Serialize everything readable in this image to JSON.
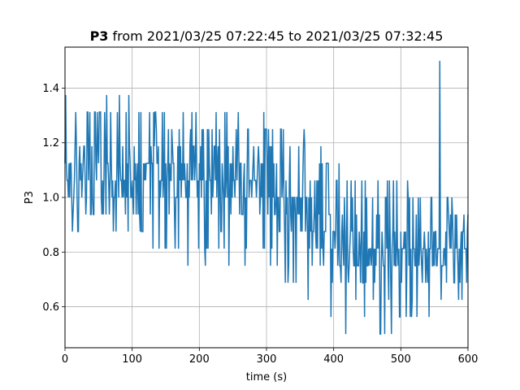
{
  "chart_data": {
    "type": "line",
    "title_bold": "P3",
    "title_rest": " from 2021/03/25 07:22:45 to 2021/03/25 07:32:45",
    "xlabel": "time (s)",
    "ylabel": "P3",
    "xlim": [
      0,
      600
    ],
    "ylim": [
      0.45,
      1.55
    ],
    "xticks": [
      0,
      100,
      200,
      300,
      400,
      500,
      600
    ],
    "yticks": [
      0.6,
      0.8,
      1.0,
      1.2,
      1.4
    ],
    "ytick_labels": [
      "0.6",
      "0.8",
      "1.0",
      "1.2",
      "1.4"
    ],
    "grid": true,
    "series": [
      {
        "color": "#1f77b4",
        "x_start": 0,
        "x_end": 600,
        "points": 601,
        "quantization_step": 0.0625,
        "envelope": [
          {
            "x": 0,
            "min": 0.875,
            "max": 1.375,
            "center": 1.09
          },
          {
            "x": 100,
            "min": 0.875,
            "max": 1.375,
            "center": 1.09
          },
          {
            "x": 160,
            "min": 0.75,
            "max": 1.3125,
            "center": 1.08
          },
          {
            "x": 300,
            "min": 0.75,
            "max": 1.3125,
            "center": 1.05
          },
          {
            "x": 330,
            "min": 0.6875,
            "max": 1.25,
            "center": 0.97
          },
          {
            "x": 380,
            "min": 0.5625,
            "max": 1.1875,
            "center": 0.89
          },
          {
            "x": 430,
            "min": 0.5,
            "max": 1.0625,
            "center": 0.82
          },
          {
            "x": 480,
            "min": 0.5,
            "max": 1.0625,
            "center": 0.8
          },
          {
            "x": 600,
            "min": 0.625,
            "max": 1.0,
            "center": 0.81
          }
        ],
        "spikes": [
          {
            "x": 558,
            "value": 1.5
          },
          {
            "x": 356,
            "value": 1.25
          },
          {
            "x": 418,
            "value": 0.5
          },
          {
            "x": 470,
            "value": 0.5
          }
        ]
      }
    ]
  }
}
